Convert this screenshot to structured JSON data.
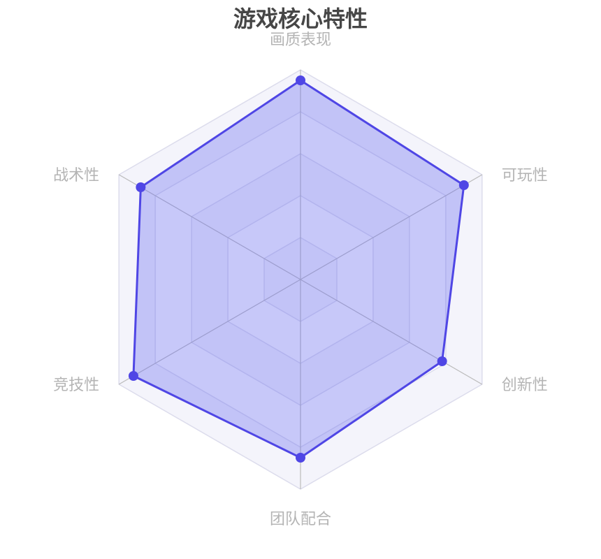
{
  "chart_data": {
    "type": "radar",
    "title": "游戏核心特性",
    "indicators": [
      "画质表现",
      "可玩性",
      "创新性",
      "团队配合",
      "竞技性",
      "战术性"
    ],
    "max": 100,
    "split_number": 5,
    "series": [
      {
        "values": [
          95,
          90,
          78,
          85,
          92,
          88
        ]
      }
    ],
    "colors": {
      "line": "#4f46e5",
      "fill": "#6366f1",
      "axis": "#bbbbbb",
      "split_line": "#dcdcec",
      "label": "#b4b4b4",
      "title": "#464646"
    }
  }
}
